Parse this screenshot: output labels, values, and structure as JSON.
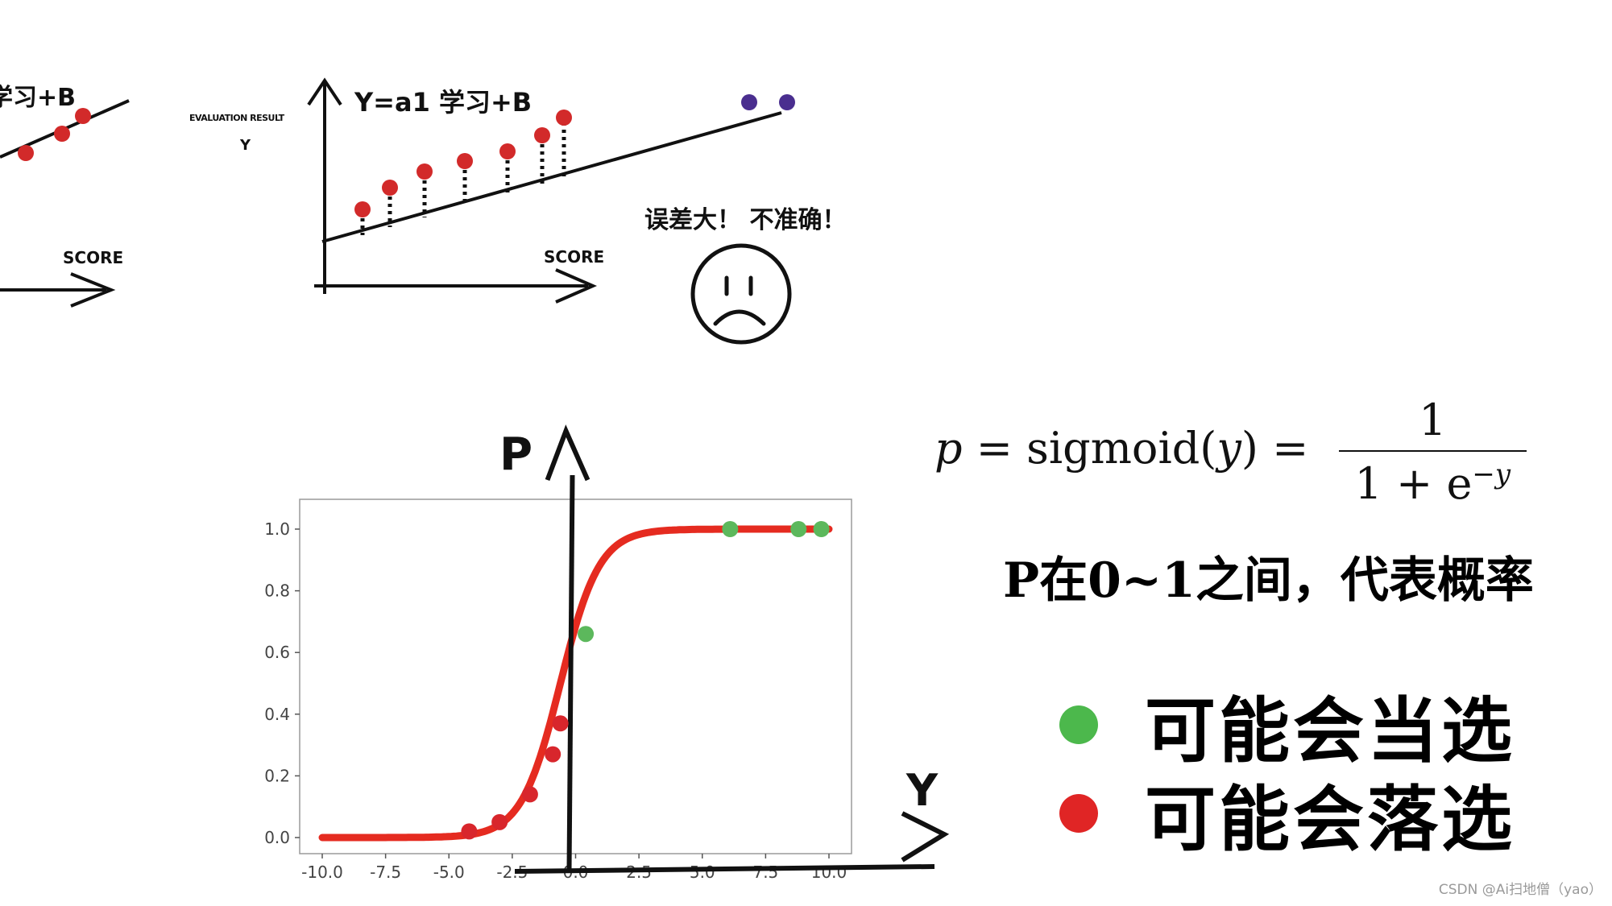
{
  "top_left": {
    "partial_equation": "学习+B",
    "x_axis_label": "SCORE"
  },
  "top_middle": {
    "y_axis_label_1": "EVALUATION RESULT",
    "y_axis_label_2": "Y",
    "equation": "Y=a1 学习+B",
    "x_axis_label": "SCORE"
  },
  "top_right": {
    "comment": "误差大！ 不准确！"
  },
  "sigmoid_chart": {
    "p_axis_label": "P",
    "y_axis_label": "Y",
    "x_ticks": [
      "-10.0",
      "-7.5",
      "-5.0",
      "-2.5",
      "0.0",
      "2.5",
      "5.0",
      "7.5",
      "10.0"
    ],
    "y_ticks": [
      "0.0",
      "0.2",
      "0.4",
      "0.6",
      "0.8",
      "1.0"
    ]
  },
  "chart_data": {
    "type": "line",
    "xlim": [
      -10,
      10
    ],
    "ylim": [
      0,
      1.05
    ],
    "curve": "sigmoid",
    "curve_color": "#e52b20",
    "red_points": [
      {
        "x": -4.2,
        "y": 0.02
      },
      {
        "x": -3.0,
        "y": 0.05
      },
      {
        "x": -1.8,
        "y": 0.14
      },
      {
        "x": -0.9,
        "y": 0.27
      },
      {
        "x": -0.6,
        "y": 0.37
      }
    ],
    "green_points": [
      {
        "x": 0.4,
        "y": 0.66
      },
      {
        "x": 6.1,
        "y": 1.0
      },
      {
        "x": 8.8,
        "y": 1.0
      },
      {
        "x": 9.7,
        "y": 1.0
      }
    ],
    "red_color": "#d8262c",
    "green_color": "#5cb85c"
  },
  "formula": {
    "lhs": "p",
    "eq": "=",
    "func": "sigmoid(",
    "arg": "y",
    "close": ")",
    "eq2": "=",
    "numerator": "1",
    "denominator_base": "1 + e",
    "denominator_exp": "−y"
  },
  "description": "P在0~1之间，代表概率",
  "legend": {
    "items": [
      {
        "label": "可能会当选",
        "color": "#4cb84c"
      },
      {
        "label": "可能会落选",
        "color": "#e02525"
      }
    ]
  },
  "watermark": "CSDN @Ai扫地僧（yao）"
}
